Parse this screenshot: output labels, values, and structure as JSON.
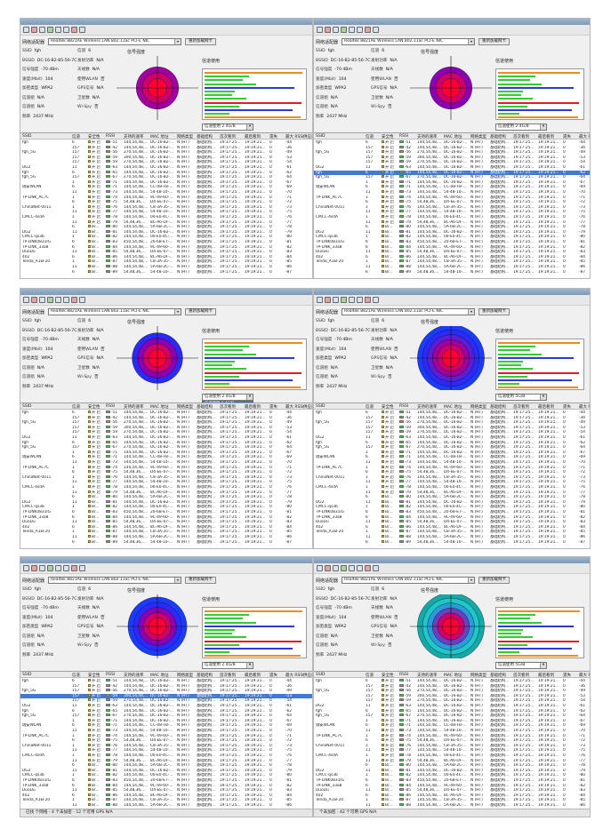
{
  "app": {
    "adapter_label": "网络适配器",
    "adapter_value": "Realtek 8821AE Wireless LAN 802.11ac PCI-E NIC",
    "reload_label": "重新加载网卡",
    "signal_label": "信号强度",
    "usage_label": "信道使用",
    "usage_select": "信道使用 2.4G/B",
    "usage_select_5g": "信道使用 5G/B",
    "dropdown_options": [
      "信道使用 2.4G/B",
      "信道使用 5G/B",
      "2.4G+5G Data"
    ]
  },
  "info_fields": [
    {
      "k": "SSID",
      "v": "fgh"
    },
    {
      "k": "信道",
      "v": "6"
    },
    {
      "k": "BSSID",
      "v": "DC-16-B2-85-56-7C"
    },
    {
      "k": "发射功率",
      "v": "N/A"
    },
    {
      "k": "信号强度",
      "v": "-70 dBm"
    },
    {
      "k": "天线数",
      "v": "N/A"
    },
    {
      "k": "速度(Mbit)",
      "v": "104"
    },
    {
      "k": "使用WLAN",
      "v": "否"
    },
    {
      "k": "加密类型",
      "v": "WPA2"
    },
    {
      "k": "GPS信号",
      "v": "N/A"
    },
    {
      "k": "信道组",
      "v": "N/A"
    },
    {
      "k": "卫星数",
      "v": "N/A"
    },
    {
      "k": "信道组",
      "v": "N/A"
    },
    {
      "k": "Wi-Spy",
      "v": "否"
    },
    {
      "k": "频率",
      "v": "2437 MHz"
    }
  ],
  "table": {
    "headers": [
      "SSID",
      "信道",
      "安全性",
      "RSSI",
      "支持的速率",
      "MAC 地址",
      "网络类型",
      "基础结构",
      "首次看到",
      "最后看到",
      "遗失",
      "最大 RSSI",
      "供应商"
    ],
    "rows": [
      {
        "ssid": "fgh",
        "ch": "6",
        "sec": "开 启",
        "rssi": "-51",
        "rate": "144,54,48,...",
        "mac": "DC-16-B2-...",
        "type": "N (HT)",
        "infra": "基础结构...",
        "first": "19:17:25...",
        "last": "19:19:21...",
        "lost": "0",
        "max": "-44"
      },
      {
        "ssid": "",
        "ch": "157",
        "sec": "开 启",
        "rssi": "-42",
        "rate": "144,54,48,...",
        "mac": "DC-16-B2-...",
        "type": "N (HT)",
        "infra": "基础结构...",
        "first": "19:17:25...",
        "last": "19:19:21...",
        "lost": "0",
        "max": "-36"
      },
      {
        "ssid": "fgh_5G",
        "ch": "157",
        "sec": "开 启",
        "rssi": "-56",
        "rate": "270,54,48,...",
        "mac": "DC-16-B2-...",
        "type": "N (HT)",
        "infra": "基础结构...",
        "first": "19:17:25...",
        "last": "19:19:21...",
        "lost": "0",
        "max": "-49"
      },
      {
        "ssid": "",
        "ch": "157",
        "sec": "开 启",
        "rssi": "-59",
        "rate": "300,54,48,...",
        "mac": "DC-16-B2-...",
        "type": "N (HT)",
        "infra": "基础结构...",
        "first": "19:17:25...",
        "last": "19:19:21...",
        "lost": "0",
        "max": "-53"
      },
      {
        "ssid": "",
        "ch": "157",
        "sec": "开 启",
        "rssi": "-59",
        "rate": "270,54,48,...",
        "mac": "DC-16-B2-...",
        "type": "N (HT)",
        "infra": "基础结构...",
        "first": "19:17:25...",
        "last": "19:19:21...",
        "lost": "0",
        "max": "-54"
      },
      {
        "ssid": "DG2",
        "ch": "11",
        "sec": "开 启",
        "rssi": "-63",
        "rate": "144,54,48,...",
        "mac": "DC-16-B2-...",
        "type": "N (HT)",
        "infra": "基础结构...",
        "first": "19:17:25...",
        "last": "19:19:21...",
        "lost": "0",
        "max": "-61"
      },
      {
        "ssid": "fgh",
        "ch": "6",
        "sec": "开 启",
        "rssi": "-65",
        "rate": "144,54,48,...",
        "mac": "DC-16-B2-...",
        "type": "N (HT)",
        "infra": "基础结构...",
        "first": "19:17:25...",
        "last": "19:19:21...",
        "lost": "0",
        "max": "-62"
      },
      {
        "ssid": "fgh_5G",
        "ch": "157",
        "sec": "开 启",
        "rssi": "-67",
        "rate": "270,54,48,...",
        "mac": "DC-16-B2-...",
        "type": "N (HT)",
        "infra": "基础结构...",
        "first": "19:17:25...",
        "last": "19:19:21...",
        "lost": "0",
        "max": "-64"
      },
      {
        "ssid": "",
        "ch": "1",
        "sec": "开 启",
        "rssi": "-71",
        "rate": "144,54,48,...",
        "mac": "DC-16-B2-...",
        "type": "N (HT)",
        "infra": "基础结构...",
        "first": "19:17:25...",
        "last": "19:19:21...",
        "lost": "0",
        "max": "-67"
      },
      {
        "ssid": "瑞安WLAN",
        "ch": "6",
        "sec": "开 启",
        "rssi": "-71",
        "rate": "144,54,48,...",
        "mac": "CC-08-FB-...",
        "type": "N (HT)",
        "infra": "基础结构...",
        "first": "19:17:25...",
        "last": "19:19:21...",
        "lost": "0",
        "max": "-69"
      },
      {
        "ssid": "",
        "ch": "11",
        "sec": "开 启",
        "rssi": "-73",
        "rate": "144,54,48,...",
        "mac": "54-48-10-...",
        "type": "N (HT)",
        "infra": "基础结构...",
        "first": "19:17:25...",
        "last": "19:19:21...",
        "lost": "0",
        "max": "-70"
      },
      {
        "ssid": "TP-LINK_AC7C",
        "ch": "1",
        "sec": "开 启",
        "rssi": "-74",
        "rate": "144,54,48,...",
        "mac": "9C-49-60-...",
        "type": "N (HT)",
        "infra": "基础结构...",
        "first": "19:17:25...",
        "last": "19:19:21...",
        "lost": "0",
        "max": "-71"
      },
      {
        "ssid": "",
        "ch": "6",
        "sec": "开 启",
        "rssi": "-75",
        "rate": "54,48,36,...",
        "mac": "D4-EE-07-...",
        "type": "N (HT)",
        "infra": "基础结构...",
        "first": "19:17:25...",
        "last": "19:19:21...",
        "lost": "0",
        "max": "-72"
      },
      {
        "ssid": "ChinaNet-0011",
        "ch": "1",
        "sec": "开 启",
        "rssi": "-76",
        "rate": "144,54,48,...",
        "mac": "C8-3A-35-...",
        "type": "N (HT)",
        "infra": "基础结构...",
        "first": "19:17:25...",
        "last": "19:19:21...",
        "lost": "0",
        "max": "-73"
      },
      {
        "ssid": "",
        "ch": "11",
        "sec": "开 启",
        "rssi": "-77",
        "rate": "144,54,48,...",
        "mac": "54-48-10-...",
        "type": "N (HT)",
        "infra": "基础结构...",
        "first": "19:17:25...",
        "last": "19:19:21...",
        "lost": "0",
        "max": "-75"
      },
      {
        "ssid": "CMCC-4sdA",
        "ch": "1",
        "sec": "开 启",
        "rssi": "-78",
        "rate": "144,54,48,...",
        "mac": "00-E0-4C-...",
        "type": "N (HT)",
        "infra": "基础结构...",
        "first": "19:17:25...",
        "last": "19:19:21...",
        "lost": "0",
        "max": "-76"
      },
      {
        "ssid": "",
        "ch": "11",
        "sec": "开 启",
        "rssi": "-79",
        "rate": "54,48,36,...",
        "mac": "8C-A6-DF-...",
        "type": "N (HT)",
        "infra": "基础结构...",
        "first": "19:17:25...",
        "last": "19:19:21...",
        "lost": "0",
        "max": "-77"
      },
      {
        "ssid": "",
        "ch": "6",
        "sec": "B/...",
        "rssi": "-80",
        "rate": "144,54,48,...",
        "mac": "5A-6B-2C-...",
        "type": "N (HT)",
        "infra": "基础结构...",
        "first": "19:17:25...",
        "last": "19:19:21...",
        "lost": "0",
        "max": "-78"
      },
      {
        "ssid": "DG2",
        "ch": "11",
        "sec": "B/...",
        "rssi": "-81",
        "rate": "144,54,48,...",
        "mac": "DC-16-B2-...",
        "type": "N (HT)",
        "infra": "基础结构...",
        "first": "19:17:25...",
        "last": "19:19:21...",
        "lost": "0",
        "max": "-79"
      },
      {
        "ssid": "CMCC-qs3b",
        "ch": "1",
        "sec": "B/...",
        "rssi": "-82",
        "rate": "144,54,48,...",
        "mac": "00-E0-4C-...",
        "type": "N (HT)",
        "infra": "基础结构...",
        "first": "19:17:25...",
        "last": "19:19:21...",
        "lost": "0",
        "max": "-80"
      },
      {
        "ssid": "TP-LINK0831IG",
        "ch": "6",
        "sec": "B/...",
        "rssi": "-83",
        "rate": "450,54,48,...",
        "mac": "20-6B-E7-...",
        "type": "N (HT)",
        "infra": "基础结构...",
        "first": "19:17:25...",
        "last": "19:19:21...",
        "lost": "0",
        "max": "-81"
      },
      {
        "ssid": "TP-LINK_33a8",
        "ch": "6",
        "sec": "B/...",
        "rssi": "-84",
        "rate": "144,54,48,...",
        "mac": "9C-49-60-...",
        "type": "N (HT)",
        "infra": "基础结构...",
        "first": "19:17:25...",
        "last": "19:19:21...",
        "lost": "0",
        "max": "-82"
      },
      {
        "ssid": "DuoDu",
        "ch": "11",
        "sec": "B/...",
        "rssi": "-85",
        "rate": "54,48,36,...",
        "mac": "D4-EE-07-...",
        "type": "N (HT)",
        "infra": "基础结构...",
        "first": "19:17:25...",
        "last": "19:19:21...",
        "lost": "0",
        "max": "-83"
      },
      {
        "ssid": "402",
        "ch": "6",
        "sec": "B/...",
        "rssi": "-86",
        "rate": "144,54,48,...",
        "mac": "8C-A6-DF-...",
        "type": "N (HT)",
        "infra": "基础结构...",
        "first": "19:17:25...",
        "last": "19:19:21...",
        "lost": "0",
        "max": "-84"
      },
      {
        "ssid": "Tenda_A1EF20",
        "ch": "1",
        "sec": "B/...",
        "rssi": "-87",
        "rate": "144,54,48,...",
        "mac": "C8-3A-35-...",
        "type": "N (HT)",
        "infra": "基础结构...",
        "first": "19:17:25...",
        "last": "19:19:21...",
        "lost": "0",
        "max": "-85"
      },
      {
        "ssid": "",
        "ch": "11",
        "sec": "B/...",
        "rssi": "-88",
        "rate": "144,54,48,...",
        "mac": "5A-6B-2C-...",
        "type": "N (HT)",
        "infra": "基础结构...",
        "first": "19:17:25...",
        "last": "19:19:21...",
        "lost": "0",
        "max": "-86"
      },
      {
        "ssid": "",
        "ch": "6",
        "sec": "B/...",
        "rssi": "-89",
        "rate": "54,48,36,...",
        "mac": "54-48-10-...",
        "type": "N (HT)",
        "infra": "基础结构...",
        "first": "19:17:25...",
        "last": "19:19:21...",
        "lost": "0",
        "max": "-87"
      }
    ]
  },
  "panels": [
    {
      "id": "p0",
      "rings": [
        "#a000a0",
        "#d0006a",
        "#ff0033"
      ],
      "show_info": true,
      "selected_row": -1,
      "dropdown": false,
      "status": ""
    },
    {
      "id": "p1",
      "rings": [
        "#8a00b4",
        "#d0006a",
        "#ff0033"
      ],
      "show_info": true,
      "selected_row": 6,
      "dropdown": false,
      "status": ""
    },
    {
      "id": "p2",
      "rings": [
        "#2a2aff",
        "#8a00b4",
        "#d0006a",
        "#ff0033"
      ],
      "show_info": true,
      "selected_row": -1,
      "dropdown": true,
      "status": ""
    },
    {
      "id": "p3",
      "rings": [
        "#1a3cff",
        "#2a2aff",
        "#5a1fd4",
        "#a000a0",
        "#d0006a",
        "#ff0033"
      ],
      "show_info": true,
      "selected_row": -1,
      "dropdown": false,
      "status": ""
    },
    {
      "id": "p4",
      "rings": [
        "#1a3cff",
        "#2a2aff",
        "#8a00b4",
        "#d0006a",
        "#ff0033"
      ],
      "show_info": true,
      "selected_row": 3,
      "dropdown": false,
      "status": "已找 个网络 - 4 个未加密 - 12 个可用    GPS N/A"
    },
    {
      "id": "p5",
      "rings": [
        "#16a8a8",
        "#1ec8c8",
        "#2a9bd9",
        "#6a3fc4",
        "#d0006a",
        "#ff0033"
      ],
      "show_info": true,
      "selected_row": -1,
      "dropdown": false,
      "status": "个未加密 - 42 个可用      GPS N/A"
    }
  ],
  "colors": {
    "green": "#33cc33",
    "blue": "#2b3cd6",
    "orange": "#f08a1a",
    "red": "#e21c1c",
    "selection": "#3f7bd1"
  }
}
